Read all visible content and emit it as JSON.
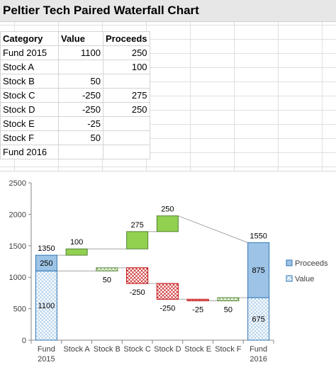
{
  "title": "Peltier Tech Paired Waterfall Chart",
  "table": {
    "headers": [
      "Category",
      "Value",
      "Proceeds"
    ],
    "rows": [
      [
        "Fund 2015",
        "1100",
        "250"
      ],
      [
        "Stock A",
        "",
        "100"
      ],
      [
        "Stock B",
        "50",
        ""
      ],
      [
        "Stock C",
        "-250",
        "275"
      ],
      [
        "Stock D",
        "-250",
        "250"
      ],
      [
        "Stock E",
        "-25",
        ""
      ],
      [
        "Stock F",
        "50",
        ""
      ],
      [
        "Fund 2016",
        "",
        ""
      ]
    ]
  },
  "chart_data": {
    "type": "bar",
    "subtype": "paired-waterfall",
    "categories": [
      "Fund 2015",
      "Stock A",
      "Stock B",
      "Stock C",
      "Stock D",
      "Stock E",
      "Stock F",
      "Fund 2016"
    ],
    "category_labels": [
      [
        "Fund",
        "2015"
      ],
      [
        "Stock A"
      ],
      [
        "Stock B"
      ],
      [
        "Stock C"
      ],
      [
        "Stock D"
      ],
      [
        "Stock E"
      ],
      [
        "Stock F"
      ],
      [
        "Fund",
        "2016"
      ]
    ],
    "series": [
      {
        "name": "Proceeds",
        "values": [
          250,
          100,
          null,
          275,
          250,
          null,
          null,
          875
        ],
        "color": "#9dc3e6",
        "up_color": "#92d050"
      },
      {
        "name": "Value",
        "values": [
          1100,
          null,
          50,
          -250,
          -250,
          -25,
          50,
          675
        ],
        "color": "#deebf7",
        "up_color": "#c6e0b4",
        "down_color": "#f4b6b6"
      }
    ],
    "totals": {
      "Fund 2015": 1350,
      "Fund 2016": 1550
    },
    "proceeds_floats": [
      {
        "category": "Stock A",
        "low": 1350,
        "high": 1450
      },
      {
        "category": "Stock C",
        "low": 1450,
        "high": 1725
      },
      {
        "category": "Stock D",
        "low": 1725,
        "high": 1975
      }
    ],
    "value_floats": [
      {
        "category": "Stock B",
        "low": 1100,
        "high": 1150
      },
      {
        "category": "Stock C",
        "low": 900,
        "high": 1150
      },
      {
        "category": "Stock D",
        "low": 650,
        "high": 900
      },
      {
        "category": "Stock E",
        "low": 625,
        "high": 650
      },
      {
        "category": "Stock F",
        "low": 625,
        "high": 675
      }
    ],
    "data_labels": [
      {
        "category": "Fund 2015",
        "text": "1350",
        "at": 1350,
        "pos": "above"
      },
      {
        "category": "Fund 2015",
        "text": "250",
        "at": 1225,
        "pos": "inside"
      },
      {
        "category": "Fund 2015",
        "text": "1100",
        "at": 550,
        "pos": "inside"
      },
      {
        "category": "Stock A",
        "text": "100",
        "at": 1450,
        "pos": "above"
      },
      {
        "category": "Stock B",
        "text": "50",
        "at": 1100,
        "pos": "below"
      },
      {
        "category": "Stock C",
        "text": "275",
        "at": 1725,
        "pos": "above"
      },
      {
        "category": "Stock C",
        "text": "-250",
        "at": 900,
        "pos": "below"
      },
      {
        "category": "Stock D",
        "text": "250",
        "at": 1975,
        "pos": "above"
      },
      {
        "category": "Stock D",
        "text": "-250",
        "at": 650,
        "pos": "below"
      },
      {
        "category": "Stock E",
        "text": "-25",
        "at": 625,
        "pos": "below"
      },
      {
        "category": "Stock F",
        "text": "50",
        "at": 625,
        "pos": "below"
      },
      {
        "category": "Fund 2016",
        "text": "1550",
        "at": 1550,
        "pos": "above"
      },
      {
        "category": "Fund 2016",
        "text": "875",
        "at": 1112.5,
        "pos": "inside"
      },
      {
        "category": "Fund 2016",
        "text": "675",
        "at": 337.5,
        "pos": "inside"
      }
    ],
    "ylim": [
      0,
      2500
    ],
    "yticks": [
      0,
      500,
      1000,
      1500,
      2000,
      2500
    ],
    "grid": false,
    "legend": "right",
    "legend_entries": [
      "Proceeds",
      "Value"
    ]
  }
}
